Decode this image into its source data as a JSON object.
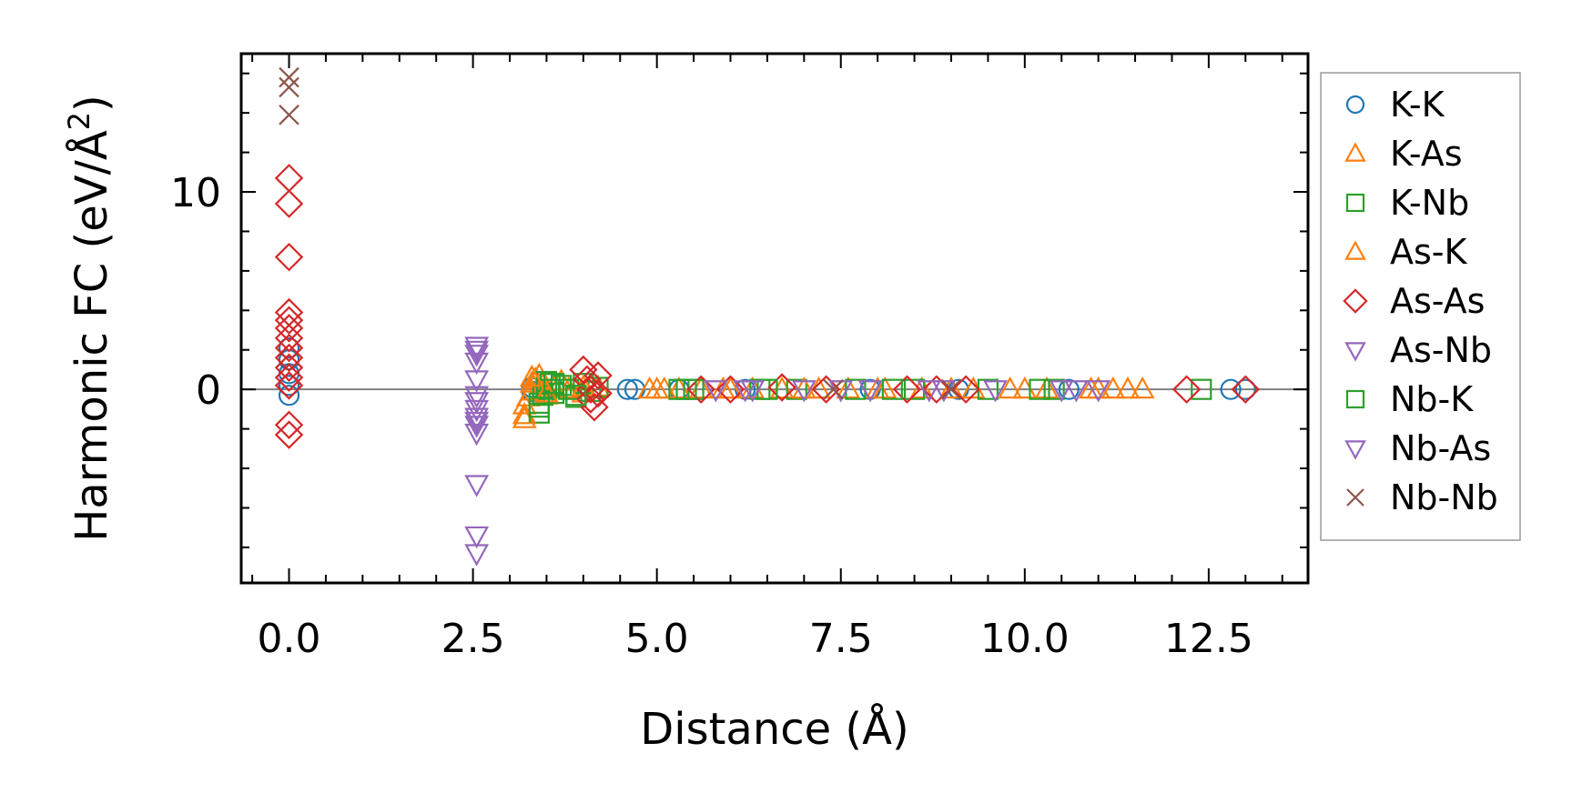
{
  "chart_data": {
    "type": "scatter",
    "xlabel": "Distance (Å)",
    "ylabel_main": "Harmonic FC (eV/Å",
    "ylabel_sup": "2",
    "ylabel_close": ")",
    "xlim": [
      -0.65,
      13.85
    ],
    "ylim": [
      -9.8,
      17.0
    ],
    "xticks": [
      0.0,
      2.5,
      5.0,
      7.5,
      10.0,
      12.5
    ],
    "xtick_labels": [
      "0.0",
      "2.5",
      "5.0",
      "7.5",
      "10.0",
      "12.5"
    ],
    "yticks": [
      0,
      10
    ],
    "ytick_labels": [
      "0",
      "10"
    ],
    "zero_line": true,
    "legend_position": "outside-right",
    "series": [
      {
        "name": "K-K",
        "marker": "circle",
        "color": "#1f77b4",
        "points": [
          [
            0,
            0.2
          ],
          [
            0,
            0.8
          ],
          [
            0,
            1.5
          ],
          [
            0,
            2.1
          ],
          [
            0,
            -0.3
          ],
          [
            3.3,
            0.1
          ],
          [
            3.3,
            -0.1
          ],
          [
            3.6,
            0.05
          ],
          [
            4.6,
            0.0
          ],
          [
            4.7,
            0.0
          ],
          [
            5.3,
            0.0
          ],
          [
            6.2,
            0.0
          ],
          [
            7.9,
            0.0
          ],
          [
            9.1,
            0.0
          ],
          [
            10.6,
            0.0
          ],
          [
            12.8,
            0.0
          ],
          [
            13.0,
            0.0
          ]
        ]
      },
      {
        "name": "K-As",
        "marker": "triangle-up",
        "color": "#ff7f0e",
        "points": [
          [
            3.2,
            -1.5
          ],
          [
            3.2,
            -0.8
          ],
          [
            3.25,
            -0.4
          ],
          [
            3.3,
            -0.1
          ],
          [
            3.3,
            0.3
          ],
          [
            3.35,
            0.5
          ],
          [
            3.4,
            0.7
          ],
          [
            3.45,
            0.2
          ],
          [
            3.5,
            -0.3
          ],
          [
            3.6,
            0.1
          ],
          [
            3.7,
            0.4
          ],
          [
            3.8,
            0.0
          ],
          [
            4.0,
            -0.2
          ],
          [
            4.2,
            0.1
          ],
          [
            4.9,
            0.0
          ],
          [
            5.1,
            0.0
          ],
          [
            5.3,
            0.0
          ],
          [
            5.6,
            0.0
          ],
          [
            5.9,
            0.0
          ],
          [
            6.3,
            0.0
          ],
          [
            6.7,
            0.0
          ],
          [
            7.2,
            0.0
          ],
          [
            7.6,
            0.0
          ],
          [
            8.1,
            0.0
          ],
          [
            8.6,
            0.0
          ],
          [
            9.3,
            0.0
          ],
          [
            9.8,
            0.0
          ],
          [
            10.3,
            0.0
          ],
          [
            10.9,
            0.0
          ],
          [
            11.2,
            0.0
          ],
          [
            11.4,
            0.0
          ],
          [
            11.6,
            0.0
          ]
        ]
      },
      {
        "name": "K-Nb",
        "marker": "square",
        "color": "#2ca02c",
        "points": [
          [
            3.4,
            -1.2
          ],
          [
            3.4,
            -0.7
          ],
          [
            3.45,
            -0.3
          ],
          [
            3.5,
            0.0
          ],
          [
            3.5,
            0.4
          ],
          [
            3.55,
            0.3
          ],
          [
            3.6,
            -0.2
          ],
          [
            3.7,
            0.2
          ],
          [
            3.8,
            0.0
          ],
          [
            3.9,
            -0.4
          ],
          [
            4.0,
            0.3
          ],
          [
            4.1,
            -0.1
          ],
          [
            4.2,
            0.1
          ],
          [
            5.3,
            0.0
          ],
          [
            5.5,
            0.0
          ],
          [
            6.4,
            0.0
          ],
          [
            6.9,
            0.0
          ],
          [
            7.7,
            0.0
          ],
          [
            8.5,
            0.0
          ],
          [
            9.5,
            0.0
          ],
          [
            10.4,
            0.0
          ],
          [
            12.4,
            0.0
          ]
        ]
      },
      {
        "name": "As-K",
        "marker": "triangle-up",
        "color": "#ff7f0e",
        "points": [
          [
            3.2,
            -1.3
          ],
          [
            3.3,
            0.6
          ],
          [
            3.5,
            -0.2
          ],
          [
            4.0,
            0.1
          ],
          [
            5.0,
            0.0
          ],
          [
            6.0,
            0.0
          ],
          [
            7.0,
            0.0
          ],
          [
            8.0,
            0.0
          ],
          [
            9.0,
            0.0
          ],
          [
            10.0,
            0.0
          ],
          [
            11.0,
            0.0
          ]
        ]
      },
      {
        "name": "As-As",
        "marker": "diamond",
        "color": "#d62728",
        "points": [
          [
            0,
            10.7
          ],
          [
            0,
            9.4
          ],
          [
            0,
            6.7
          ],
          [
            0,
            3.9
          ],
          [
            0,
            3.5
          ],
          [
            0,
            3.1
          ],
          [
            0,
            2.6
          ],
          [
            0,
            2.1
          ],
          [
            0,
            1.6
          ],
          [
            0,
            1.1
          ],
          [
            0,
            0.6
          ],
          [
            0,
            0.2
          ],
          [
            0,
            -1.8
          ],
          [
            0,
            -2.3
          ],
          [
            4.0,
            1.0
          ],
          [
            4.05,
            0.5
          ],
          [
            4.1,
            0.0
          ],
          [
            4.1,
            -0.5
          ],
          [
            4.15,
            -0.9
          ],
          [
            4.2,
            0.7
          ],
          [
            4.2,
            -0.2
          ],
          [
            5.6,
            0.0
          ],
          [
            6.0,
            0.0
          ],
          [
            6.7,
            0.1
          ],
          [
            7.3,
            0.0
          ],
          [
            8.4,
            0.0
          ],
          [
            8.8,
            0.0
          ],
          [
            9.2,
            0.0
          ],
          [
            12.2,
            0.0
          ],
          [
            13.0,
            0.0
          ]
        ]
      },
      {
        "name": "As-Nb",
        "marker": "triangle-down",
        "color": "#9467bd",
        "points": [
          [
            2.55,
            2.2
          ],
          [
            2.55,
            1.8
          ],
          [
            2.55,
            1.4
          ],
          [
            2.55,
            0.5
          ],
          [
            2.55,
            -0.3
          ],
          [
            2.55,
            -1.0
          ],
          [
            2.55,
            -1.4
          ],
          [
            2.55,
            -1.8
          ],
          [
            2.55,
            -2.2
          ],
          [
            2.55,
            -4.8
          ],
          [
            2.55,
            -7.4
          ],
          [
            2.55,
            -8.3
          ],
          [
            5.8,
            0.0
          ],
          [
            6.2,
            0.0
          ],
          [
            7.0,
            0.0
          ],
          [
            7.9,
            0.0
          ],
          [
            8.7,
            0.0
          ],
          [
            9.6,
            0.0
          ],
          [
            10.5,
            0.0
          ],
          [
            11.0,
            0.0
          ]
        ]
      },
      {
        "name": "Nb-K",
        "marker": "square",
        "color": "#2ca02c",
        "points": [
          [
            3.4,
            -0.9
          ],
          [
            3.6,
            0.3
          ],
          [
            3.9,
            -0.3
          ],
          [
            5.4,
            0.0
          ],
          [
            6.5,
            0.0
          ],
          [
            8.2,
            0.0
          ],
          [
            10.2,
            0.0
          ]
        ]
      },
      {
        "name": "Nb-As",
        "marker": "triangle-down",
        "color": "#9467bd",
        "points": [
          [
            2.55,
            2.0
          ],
          [
            2.55,
            -0.6
          ],
          [
            2.55,
            -1.6
          ],
          [
            6.3,
            0.0
          ],
          [
            7.5,
            0.0
          ],
          [
            8.9,
            0.0
          ],
          [
            10.7,
            0.0
          ]
        ]
      },
      {
        "name": "Nb-Nb",
        "marker": "x",
        "color": "#8c564b",
        "points": [
          [
            0,
            15.8
          ],
          [
            0,
            15.3
          ],
          [
            0,
            13.9
          ],
          [
            7.4,
            0.0
          ],
          [
            9.0,
            0.0
          ]
        ]
      }
    ]
  }
}
